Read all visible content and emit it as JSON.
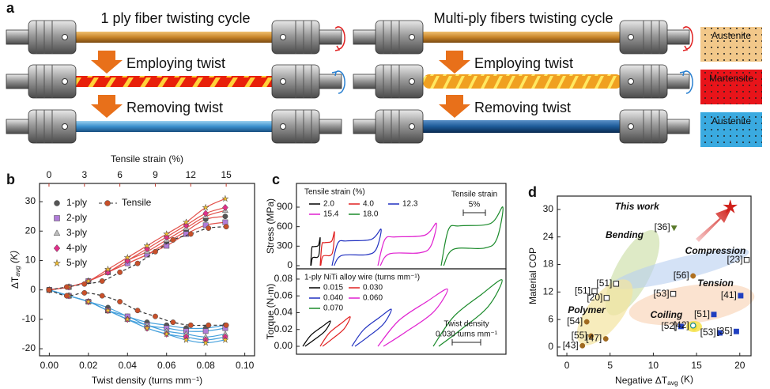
{
  "panel_a": {
    "label": "a",
    "left": {
      "title": "1 ply fiber twisting cycle",
      "steps": [
        "Employing twist",
        "Removing twist"
      ]
    },
    "right": {
      "title": "Multi-ply fibers twisting cycle",
      "steps": [
        "Employing twist",
        "Removing twist"
      ]
    },
    "phases": [
      "Austenite",
      "Martensite",
      "Austenite"
    ]
  },
  "chart_data": [
    {
      "type": "line",
      "panel": "b",
      "x": [
        0,
        0.01,
        0.02,
        0.03,
        0.04,
        0.05,
        0.06,
        0.07,
        0.08,
        0.09
      ],
      "xlabel": "Twist density (turns mm⁻¹)",
      "xlim": [
        -0.005,
        0.105
      ],
      "xticks": [
        {
          "value": 0,
          "label": "0.00"
        },
        {
          "value": 0.02,
          "label": "0.02"
        },
        {
          "value": 0.04,
          "label": "0.04"
        },
        {
          "value": 0.06,
          "label": "0.06"
        },
        {
          "value": 0.08,
          "label": "0.08"
        },
        {
          "value": 0.1,
          "label": "0.10"
        }
      ],
      "x2label": "Tensile strain (%)",
      "x2lim": [
        -0.8,
        17.4
      ],
      "x2ticks": [
        0,
        3,
        6,
        9,
        12,
        15
      ],
      "x2color": "#c0392b",
      "ylabel": [
        "ΔT",
        "avg",
        " (K)"
      ],
      "ylim": [
        -22.4,
        36.2
      ],
      "yticks": [
        -20,
        -10,
        0,
        10,
        20,
        30
      ],
      "heating_color": "#e2504a",
      "cooling_color": "#45a0dc",
      "series": [
        {
          "name": "1-ply",
          "color": "#555555",
          "marker": "circle",
          "values": [
            0,
            1,
            3,
            6,
            9,
            12,
            16,
            20,
            24,
            25
          ],
          "cooling_values": [
            0,
            -2,
            -4,
            -6,
            -9,
            -11,
            -12,
            -13,
            -13,
            -12
          ]
        },
        {
          "name": "2-ply",
          "color": "#b07cd8",
          "marker": "square",
          "values": [
            0,
            1,
            3,
            6,
            9,
            12,
            15,
            19,
            22,
            23
          ],
          "cooling_values": [
            0,
            -2,
            -4,
            -7,
            -9,
            -12,
            -13,
            -14,
            -14,
            -13
          ]
        },
        {
          "name": "3-ply",
          "color": "#bdbdbd",
          "marker": "triangle",
          "values": [
            0,
            1,
            3,
            6,
            10,
            13,
            17,
            21,
            25,
            27
          ],
          "cooling_values": [
            0,
            -2,
            -4,
            -7,
            -10,
            -12,
            -14,
            -15,
            -16,
            -15
          ]
        },
        {
          "name": "4-ply",
          "color": "#e0308a",
          "marker": "diamond",
          "values": [
            0,
            1,
            3,
            6,
            10,
            14,
            18,
            22,
            26,
            28
          ],
          "cooling_values": [
            0,
            -2,
            -4,
            -7,
            -10,
            -13,
            -15,
            -16,
            -17,
            -16
          ]
        },
        {
          "name": "5-ply",
          "color": "#f5c030",
          "marker": "star",
          "values": [
            0,
            1,
            3,
            7,
            11,
            15,
            19,
            23,
            28,
            31
          ],
          "cooling_values": [
            0,
            -2,
            -4,
            -7,
            -10,
            -13,
            -15,
            -17,
            -18,
            -17
          ]
        }
      ],
      "tensile": {
        "name": "Tensile",
        "axis": "x2",
        "color": "#c8502a",
        "x": [
          0,
          1.5,
          3,
          4.5,
          6,
          7.5,
          9,
          10.5,
          12,
          13.5,
          15
        ],
        "values": [
          0,
          1,
          2,
          3,
          6,
          9,
          13,
          17,
          19,
          21,
          21.5
        ],
        "cooling_values": [
          0,
          -2,
          -1,
          -2,
          -4,
          -7,
          -9,
          -11,
          -12,
          -12,
          -12
        ]
      }
    },
    {
      "type": "loops",
      "panel": "c",
      "ylabel": "Stress (MPa)",
      "ylim": [
        -49,
        1265
      ],
      "yticks": [
        0,
        300,
        600,
        900
      ],
      "legend_title": "Tensile strain (%)",
      "series": [
        {
          "name": "2.0",
          "color": "#000000",
          "peak": 430
        },
        {
          "name": "4.0",
          "color": "#e02020",
          "peak": 520
        },
        {
          "name": "12.3",
          "color": "#2030c0",
          "peak": 560
        },
        {
          "name": "15.4",
          "color": "#e020d0",
          "peak": 650
        },
        {
          "name": "18.0",
          "color": "#1a8a2a",
          "peak": 900
        }
      ],
      "scale_bar": [
        "Tensile strain",
        "5%"
      ]
    },
    {
      "type": "loops",
      "ylabel": "Torque (N·m)",
      "ylim": [
        -0.0094,
        0.0922
      ],
      "yticks": [
        {
          "value": 0,
          "label": "0.00"
        },
        {
          "value": 0.02,
          "label": "0.02"
        },
        {
          "value": 0.04,
          "label": "0.04"
        },
        {
          "value": 0.06,
          "label": "0.06"
        },
        {
          "value": 0.08,
          "label": "0.08"
        }
      ],
      "legend_title": "1-ply NiTi alloy wire (turns mm⁻¹)",
      "series": [
        {
          "name": "0.015",
          "color": "#000000",
          "peak": 0.03
        },
        {
          "name": "0.030",
          "color": "#e02020",
          "peak": 0.035
        },
        {
          "name": "0.040",
          "color": "#2030c0",
          "peak": 0.044
        },
        {
          "name": "0.060",
          "color": "#e020d0",
          "peak": 0.068
        },
        {
          "name": "0.070",
          "color": "#1a8a2a",
          "peak": 0.079
        }
      ],
      "scale_bar": [
        "Twist density",
        "0.030 turns mm⁻¹"
      ]
    },
    {
      "type": "scatter",
      "panel": "d",
      "xlabel": [
        "Negative ΔT",
        "avg",
        " (K)"
      ],
      "ylabel": "Material COP",
      "xlim": [
        -1.1,
        21.3
      ],
      "ylim": [
        -1.9,
        32.9
      ],
      "xticks": [
        0,
        5,
        10,
        15,
        20
      ],
      "yticks": [
        0,
        6,
        12,
        18,
        24,
        30
      ],
      "groups": [
        {
          "name": "Bending",
          "color": "#5a8a2a"
        },
        {
          "name": "Compression",
          "color": "#3a6fc0"
        },
        {
          "name": "Tension",
          "color": "#b05a1a"
        },
        {
          "name": "Polymer",
          "color": "#8a5a1a"
        },
        {
          "name": "Coiling",
          "color": "#c08a10"
        }
      ],
      "points": [
        {
          "label": "This work",
          "x": 18.9,
          "y": 30.5,
          "color": "#d0201a",
          "marker": "star"
        },
        {
          "label": "[36]",
          "x": 12.4,
          "y": 26.0,
          "color": "#5a7a2a",
          "marker": "triangle-down"
        },
        {
          "label": "[23]",
          "x": 20.8,
          "y": 19.0,
          "color": "#222222",
          "marker": "square-open"
        },
        {
          "label": "[56]",
          "x": 14.6,
          "y": 15.5,
          "color": "#b07020",
          "marker": "half"
        },
        {
          "label": "[51]",
          "x": 5.7,
          "y": 13.8,
          "color": "#222222",
          "marker": "square-open"
        },
        {
          "label": "[51]",
          "x": 3.2,
          "y": 12.2,
          "color": "#222222",
          "marker": "square-open"
        },
        {
          "label": "[20]",
          "x": 4.6,
          "y": 10.7,
          "color": "#222222",
          "marker": "square-open"
        },
        {
          "label": "[53]",
          "x": 12.3,
          "y": 11.6,
          "color": "#222222",
          "marker": "square-open"
        },
        {
          "label": "[41]",
          "x": 20.1,
          "y": 11.2,
          "color": "#2040c0",
          "marker": "square"
        },
        {
          "label": "[54]",
          "x": 2.3,
          "y": 5.5,
          "color": "#a06a20",
          "marker": "half"
        },
        {
          "label": "[55]",
          "x": 2.8,
          "y": 2.4,
          "color": "#a06a20",
          "marker": "half"
        },
        {
          "label": "[43]",
          "x": 1.8,
          "y": 0.3,
          "color": "#a06a20",
          "marker": "half"
        },
        {
          "label": "[47]",
          "x": 4.5,
          "y": 1.8,
          "color": "#a06a20",
          "marker": "half"
        },
        {
          "label": "[51]",
          "x": 17.0,
          "y": 7.1,
          "color": "#2040c0",
          "marker": "square"
        },
        {
          "label": "[52]",
          "x": 13.2,
          "y": 4.5,
          "color": "#2040c0",
          "marker": "square"
        },
        {
          "label": "[42]",
          "x": 14.6,
          "y": 4.7,
          "color": "#1a8a8a",
          "marker": "circle-plus"
        },
        {
          "label": "[53]",
          "x": 17.7,
          "y": 3.1,
          "color": "#2040c0",
          "marker": "square"
        },
        {
          "label": "[35]",
          "x": 19.6,
          "y": 3.4,
          "color": "#2040c0",
          "marker": "square"
        }
      ]
    }
  ]
}
